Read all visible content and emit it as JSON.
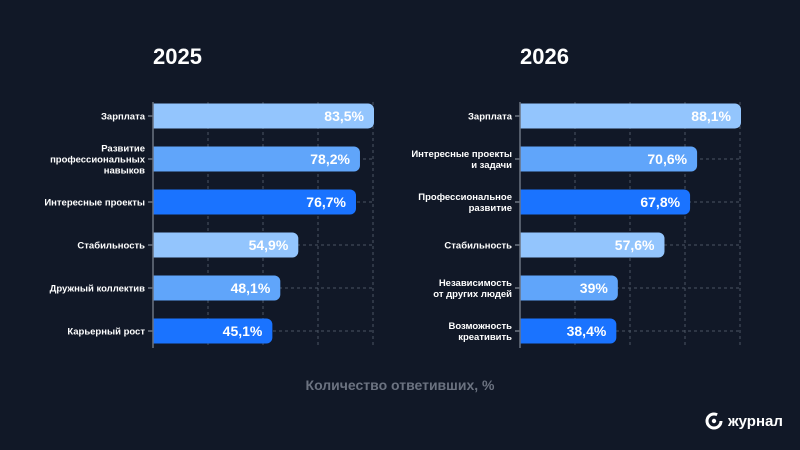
{
  "chart_data": [
    {
      "type": "bar",
      "orientation": "horizontal",
      "title": "2025",
      "categories": [
        [
          "Зарплата"
        ],
        [
          "Развитие",
          "профессиональных",
          "навыков"
        ],
        [
          "Интересные проекты"
        ],
        [
          "Стабильность"
        ],
        [
          "Дружный коллектив"
        ],
        [
          "Карьерный рост"
        ]
      ],
      "values": [
        83.5,
        78.2,
        76.7,
        54.9,
        48.1,
        45.1
      ],
      "data_labels": [
        "83,5%",
        "78,2%",
        "76,7%",
        "54,9%",
        "48,1%",
        "45,1%"
      ],
      "colors": [
        "#93c5fd",
        "#60a5fa",
        "#1a73ff",
        "#93c5fd",
        "#60a5fa",
        "#1a73ff"
      ],
      "grid": true
    },
    {
      "type": "bar",
      "orientation": "horizontal",
      "title": "2026",
      "categories": [
        [
          "Зарплата"
        ],
        [
          "Интересные проекты",
          "и задачи"
        ],
        [
          "Профессиональное",
          "развитие"
        ],
        [
          "Стабильность"
        ],
        [
          "Независимость",
          "от других людей"
        ],
        [
          "Возможность",
          "креативить"
        ]
      ],
      "values": [
        88.1,
        70.6,
        67.8,
        57.6,
        39,
        38.4
      ],
      "data_labels": [
        "88,1%",
        "70,6%",
        "67,8%",
        "57,6%",
        "39%",
        "38,4%"
      ],
      "colors": [
        "#93c5fd",
        "#60a5fa",
        "#1a73ff",
        "#93c5fd",
        "#60a5fa",
        "#1a73ff"
      ],
      "grid": true
    }
  ],
  "xlabel": "Количество ответивших, %",
  "logo": "журнал"
}
